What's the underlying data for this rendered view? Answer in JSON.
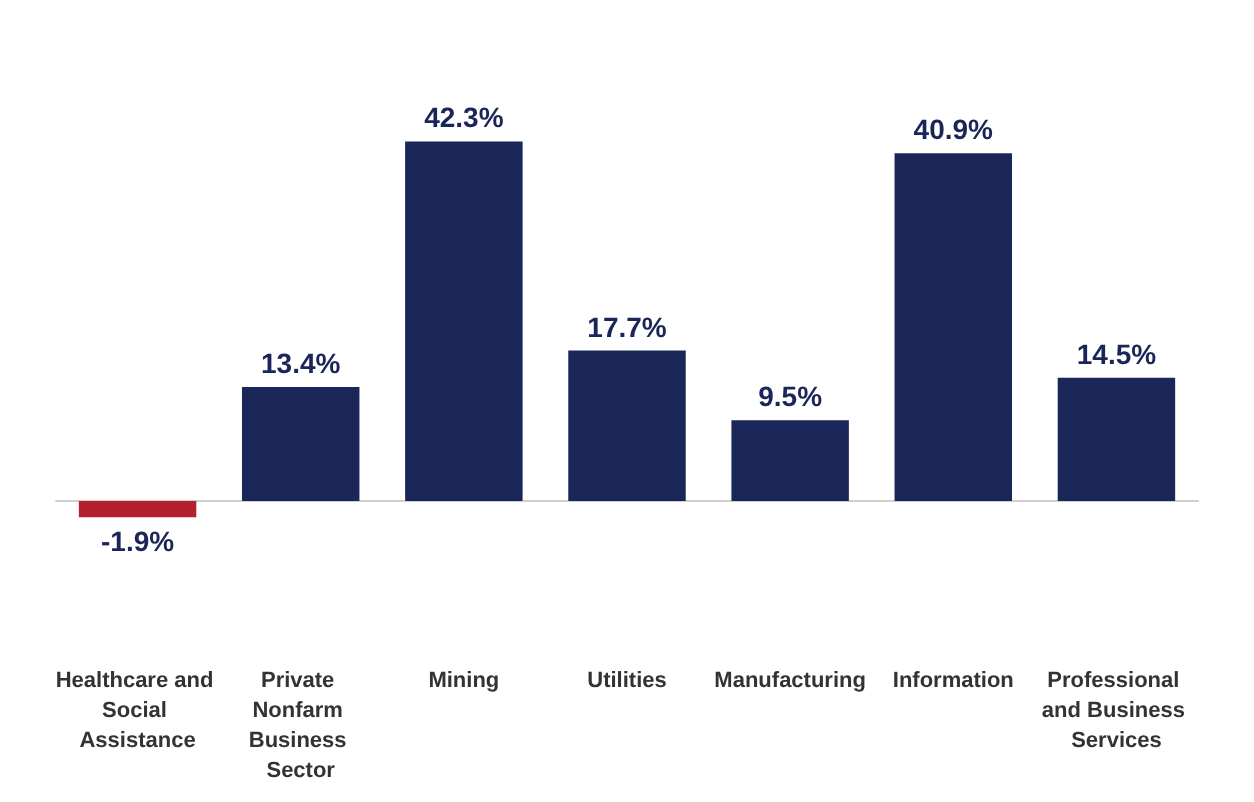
{
  "chart_data": {
    "type": "bar",
    "categories": [
      "Healthcare and Social Assistance",
      "Private Nonfarm Business Sector",
      "Mining",
      "Utilities",
      "Manufacturing",
      "Information",
      "Professional and Business Services"
    ],
    "values": [
      -1.9,
      13.4,
      42.3,
      17.7,
      9.5,
      40.9,
      14.5
    ],
    "colors": [
      "#b5202e",
      "#1b2658",
      "#1b2658",
      "#1b2658",
      "#1b2658",
      "#1b2658",
      "#1b2658"
    ],
    "value_labels": [
      "-1.9%",
      "13.4%",
      "42.3%",
      "17.7%",
      "9.5%",
      "40.9%",
      "14.5%"
    ],
    "grid": false
  }
}
